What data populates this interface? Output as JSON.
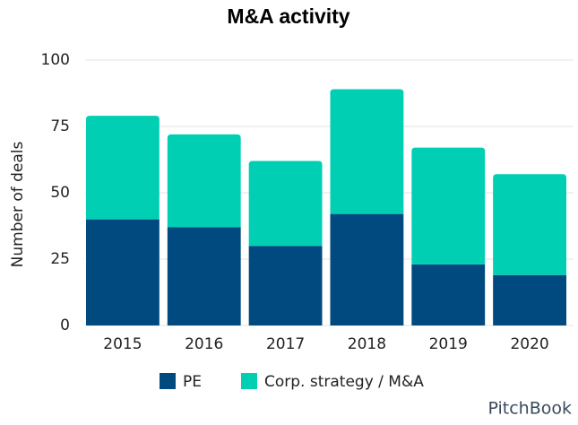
{
  "chart_data": {
    "type": "stacked_bar",
    "title": "M&A activity",
    "y_label": "Number of deals",
    "categories": [
      "2015",
      "2016",
      "2017",
      "2018",
      "2019",
      "2020"
    ],
    "series": [
      {
        "name": "PE",
        "color": "#004a7f",
        "values": [
          40,
          37,
          30,
          42,
          23,
          19
        ]
      },
      {
        "name": "Corp. strategy / M&A",
        "color": "#00cfb4",
        "values": [
          39,
          35,
          32,
          47,
          44,
          38
        ]
      }
    ],
    "ylim": [
      0,
      100
    ],
    "yticks": [
      0,
      25,
      50,
      75,
      100
    ],
    "grid": true,
    "legend": "bottom",
    "source": "PitchBook"
  }
}
